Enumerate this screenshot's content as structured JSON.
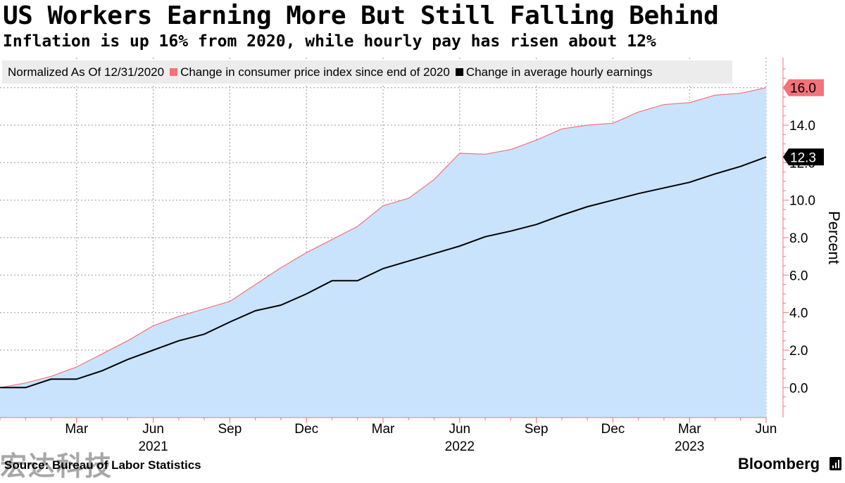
{
  "header": {
    "title": "US Workers Earning More But Still Falling Behind",
    "subtitle": "Inflation is up 16% from 2020, while hourly pay has risen about 12%"
  },
  "legend": {
    "note": "Normalized As Of 12/31/2020",
    "items": [
      {
        "label": "Change in consumer price index since end of 2020",
        "color": "#f4727a"
      },
      {
        "label": "Change in average hourly earnings",
        "color": "#000000"
      }
    ]
  },
  "footer": {
    "source": "Source: Bureau of Labor Statistics",
    "brand": "Bloomberg",
    "watermark": "宏达科技"
  },
  "colors": {
    "cpi_line": "#f4727a",
    "cpi_fill": "#c9e3fd",
    "earnings_line": "#000000",
    "axis": "#f4727a",
    "grid": "#9a9a9a"
  },
  "chart_data": {
    "type": "area",
    "x": [
      "2020-12",
      "2021-01",
      "2021-02",
      "2021-03",
      "2021-04",
      "2021-05",
      "2021-06",
      "2021-07",
      "2021-08",
      "2021-09",
      "2021-10",
      "2021-11",
      "2021-12",
      "2022-01",
      "2022-02",
      "2022-03",
      "2022-04",
      "2022-05",
      "2022-06",
      "2022-07",
      "2022-08",
      "2022-09",
      "2022-10",
      "2022-11",
      "2022-12",
      "2023-01",
      "2023-02",
      "2023-03",
      "2023-04",
      "2023-05",
      "2023-06"
    ],
    "series": [
      {
        "name": "Change in consumer price index since end of 2020",
        "values": [
          0.0,
          0.25,
          0.6,
          1.1,
          1.8,
          2.5,
          3.3,
          3.8,
          4.2,
          4.6,
          5.5,
          6.4,
          7.2,
          7.9,
          8.6,
          9.7,
          10.1,
          11.1,
          12.5,
          12.45,
          12.7,
          13.2,
          13.8,
          14.0,
          14.1,
          14.7,
          15.1,
          15.2,
          15.6,
          15.7,
          16.0
        ]
      },
      {
        "name": "Change in average hourly earnings",
        "values": [
          0.0,
          0.0,
          0.45,
          0.45,
          0.9,
          1.5,
          2.0,
          2.5,
          2.85,
          3.5,
          4.1,
          4.4,
          5.0,
          5.7,
          5.7,
          6.35,
          6.75,
          7.15,
          7.55,
          8.05,
          8.35,
          8.7,
          9.2,
          9.65,
          10.0,
          10.35,
          10.65,
          10.95,
          11.4,
          11.8,
          12.3
        ]
      }
    ],
    "end_labels": [
      "16.0",
      "12.3"
    ],
    "x_ticks": [
      {
        "index": 3,
        "label": "Mar"
      },
      {
        "index": 6,
        "label": "Jun"
      },
      {
        "index": 9,
        "label": "Sep"
      },
      {
        "index": 12,
        "label": "Dec"
      },
      {
        "index": 15,
        "label": "Mar"
      },
      {
        "index": 18,
        "label": "Jun"
      },
      {
        "index": 21,
        "label": "Sep"
      },
      {
        "index": 24,
        "label": "Dec"
      },
      {
        "index": 27,
        "label": "Mar"
      },
      {
        "index": 30,
        "label": "Jun"
      }
    ],
    "x_year_labels": [
      {
        "index": 6,
        "label": "2021"
      },
      {
        "index": 18,
        "label": "2022"
      },
      {
        "index": 27,
        "label": "2023"
      }
    ],
    "y_ticks": [
      0.0,
      2.0,
      4.0,
      6.0,
      8.0,
      10.0,
      12.0,
      14.0,
      16.0
    ],
    "y_tick_labels": [
      "0.0",
      "2.0",
      "4.0",
      "6.0",
      "8.0",
      "10.0",
      "12.0",
      "14.0",
      "16.0"
    ],
    "ylabel": "Percent",
    "ylim": [
      -1.6,
      17.6
    ],
    "grid": true,
    "legend_position": "top"
  }
}
